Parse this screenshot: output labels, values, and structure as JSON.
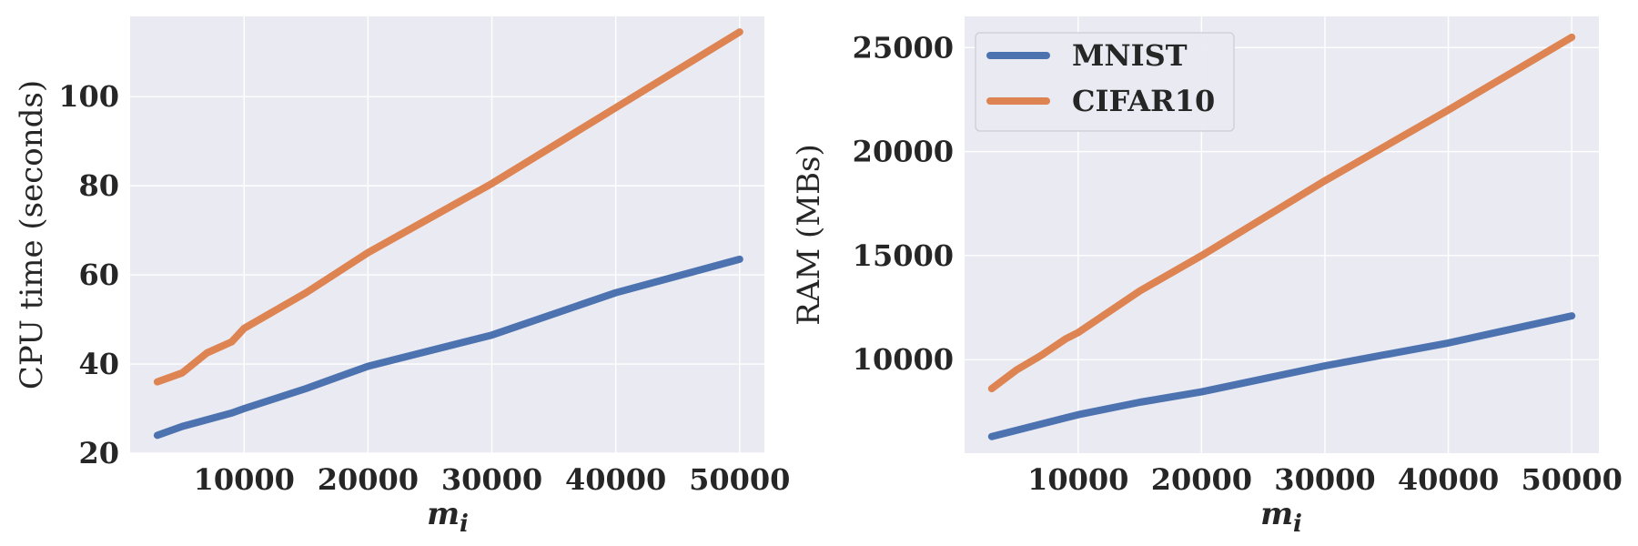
{
  "chart_data": [
    {
      "type": "line",
      "xlabel": "m",
      "xlabel_sub": "i",
      "ylabel": "CPU time (seconds)",
      "xlim": [
        800,
        52000
      ],
      "ylim": [
        20,
        118
      ],
      "xticks": [
        10000,
        20000,
        30000,
        40000,
        50000
      ],
      "yticks": [
        20,
        40,
        60,
        80,
        100
      ],
      "grid": true,
      "series": [
        {
          "name": "MNIST",
          "color": "#4c72b0",
          "x": [
            3000,
            5000,
            7000,
            9000,
            10000,
            15000,
            20000,
            30000,
            40000,
            50000
          ],
          "y": [
            24,
            26,
            27.5,
            29,
            30,
            34.5,
            39.5,
            46.5,
            56,
            63.5
          ]
        },
        {
          "name": "CIFAR10",
          "color": "#dd8452",
          "x": [
            3000,
            5000,
            7000,
            9000,
            10000,
            15000,
            20000,
            30000,
            40000,
            50000
          ],
          "y": [
            36,
            38,
            42.5,
            45,
            48,
            56,
            65,
            80.5,
            97.5,
            114.5
          ]
        }
      ]
    },
    {
      "type": "line",
      "xlabel": "m",
      "xlabel_sub": "i",
      "ylabel": "RAM (MBs)",
      "xlim": [
        800,
        52200
      ],
      "ylim": [
        5500,
        26500
      ],
      "xticks": [
        10000,
        20000,
        30000,
        40000,
        50000
      ],
      "yticks": [
        10000,
        15000,
        20000,
        25000
      ],
      "grid": true,
      "legend": "top-left",
      "series": [
        {
          "name": "MNIST",
          "color": "#4c72b0",
          "x": [
            3000,
            5000,
            7000,
            9000,
            10000,
            15000,
            20000,
            30000,
            40000,
            50000
          ],
          "y": [
            6300,
            6600,
            6900,
            7200,
            7350,
            7950,
            8450,
            9700,
            10800,
            12100
          ]
        },
        {
          "name": "CIFAR10",
          "color": "#dd8452",
          "x": [
            3000,
            5000,
            7000,
            9000,
            10000,
            15000,
            20000,
            30000,
            40000,
            50000
          ],
          "y": [
            8600,
            9500,
            10200,
            11000,
            11300,
            13300,
            15000,
            18600,
            22000,
            25500
          ]
        }
      ]
    }
  ]
}
